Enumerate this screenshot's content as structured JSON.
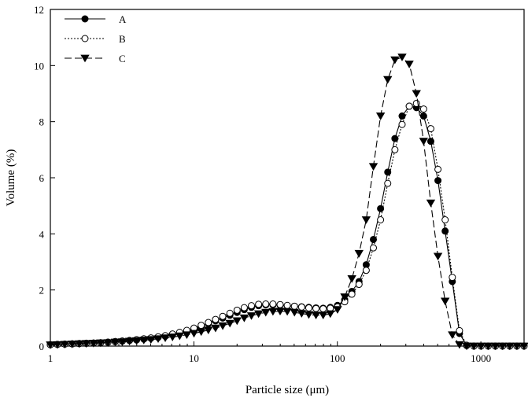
{
  "chart_data": {
    "type": "line",
    "title": "",
    "xlabel": "Particle size (μm)",
    "ylabel": "Volume (%)",
    "xscale": "log",
    "xlim": [
      1,
      2000
    ],
    "ylim": [
      0,
      12
    ],
    "x_ticks": [
      1,
      10,
      100,
      1000
    ],
    "x_tick_labels": [
      "1",
      "10",
      "100",
      "1000"
    ],
    "y_ticks": [
      0,
      2,
      4,
      6,
      8,
      10,
      12
    ],
    "y_tick_labels": [
      "0",
      "2",
      "4",
      "6",
      "8",
      "10",
      "12"
    ],
    "grid": false,
    "legend_position": "top-left",
    "x": [
      1.0,
      1.12,
      1.26,
      1.42,
      1.59,
      1.78,
      2.0,
      2.24,
      2.52,
      2.83,
      3.17,
      3.56,
      3.99,
      4.48,
      5.02,
      5.64,
      6.32,
      7.1,
      7.96,
      8.93,
      10.02,
      11.25,
      12.62,
      14.16,
      15.89,
      17.83,
      20.0,
      22.44,
      25.18,
      28.25,
      31.7,
      35.57,
      39.91,
      44.77,
      50.24,
      56.37,
      63.25,
      70.96,
      79.62,
      89.34,
      100.24,
      112.47,
      126.19,
      141.59,
      158.87,
      178.25,
      200.0,
      224.4,
      251.79,
      282.51,
      316.98,
      355.66,
      399.05,
      447.74,
      502.38,
      563.68,
      632.46,
      709.63,
      796.21,
      893.37,
      1002.37,
      1124.68,
      1261.91,
      1415.89,
      1588.66,
      1782.5,
      2000.0
    ],
    "series": [
      {
        "name": "A",
        "line_style": "solid",
        "marker": "filled-circle",
        "values": [
          0.05,
          0.06,
          0.07,
          0.08,
          0.09,
          0.1,
          0.11,
          0.12,
          0.14,
          0.16,
          0.18,
          0.2,
          0.22,
          0.25,
          0.28,
          0.31,
          0.35,
          0.4,
          0.46,
          0.53,
          0.6,
          0.7,
          0.8,
          0.9,
          1.0,
          1.1,
          1.2,
          1.3,
          1.38,
          1.44,
          1.47,
          1.47,
          1.46,
          1.44,
          1.42,
          1.4,
          1.38,
          1.36,
          1.35,
          1.38,
          1.45,
          1.65,
          1.95,
          2.3,
          2.9,
          3.8,
          4.9,
          6.2,
          7.4,
          8.2,
          8.55,
          8.5,
          8.2,
          7.3,
          5.9,
          4.1,
          2.3,
          0.45,
          0.02,
          0.0,
          0.0,
          0.0,
          0.0,
          0.0,
          0.0,
          0.0,
          0.0
        ]
      },
      {
        "name": "B",
        "line_style": "dotted",
        "marker": "open-circle",
        "values": [
          0.05,
          0.06,
          0.07,
          0.08,
          0.09,
          0.1,
          0.11,
          0.12,
          0.14,
          0.16,
          0.18,
          0.2,
          0.23,
          0.26,
          0.29,
          0.33,
          0.37,
          0.43,
          0.49,
          0.56,
          0.64,
          0.74,
          0.84,
          0.95,
          1.06,
          1.17,
          1.28,
          1.37,
          1.44,
          1.49,
          1.5,
          1.5,
          1.48,
          1.45,
          1.42,
          1.39,
          1.36,
          1.34,
          1.33,
          1.35,
          1.4,
          1.58,
          1.85,
          2.2,
          2.7,
          3.5,
          4.5,
          5.8,
          7.0,
          7.9,
          8.55,
          8.65,
          8.45,
          7.75,
          6.3,
          4.5,
          2.45,
          0.55,
          0.03,
          0.0,
          0.0,
          0.0,
          0.0,
          0.0,
          0.0,
          0.0,
          0.0
        ]
      },
      {
        "name": "C",
        "line_style": "dashed",
        "marker": "filled-triangle-down",
        "values": [
          0.04,
          0.05,
          0.06,
          0.07,
          0.08,
          0.09,
          0.1,
          0.11,
          0.12,
          0.14,
          0.15,
          0.17,
          0.19,
          0.21,
          0.23,
          0.26,
          0.29,
          0.32,
          0.36,
          0.4,
          0.45,
          0.51,
          0.57,
          0.64,
          0.72,
          0.81,
          0.9,
          1.0,
          1.08,
          1.15,
          1.2,
          1.23,
          1.24,
          1.23,
          1.2,
          1.16,
          1.12,
          1.1,
          1.1,
          1.15,
          1.3,
          1.75,
          2.4,
          3.3,
          4.5,
          6.4,
          8.2,
          9.5,
          10.2,
          10.3,
          10.05,
          9.0,
          7.3,
          5.1,
          3.2,
          1.6,
          0.4,
          0.05,
          0.0,
          0.0,
          0.0,
          0.0,
          0.0,
          0.0,
          0.0,
          0.0,
          0.0
        ]
      }
    ]
  }
}
